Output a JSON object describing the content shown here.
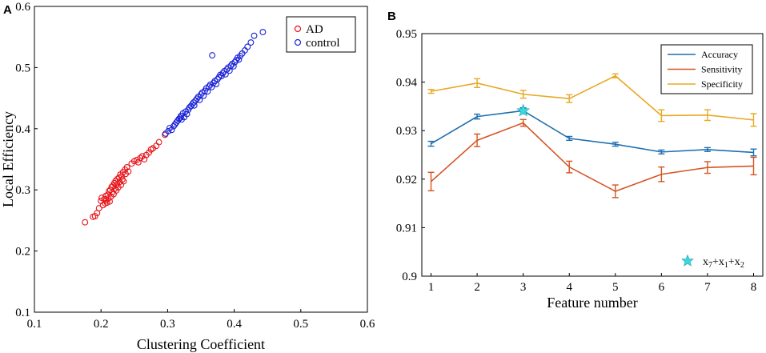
{
  "chart_data": [
    {
      "panel": "A",
      "type": "scatter",
      "xlabel": "Clustering Coefficient",
      "ylabel": "Local Efficiency",
      "xlim": [
        0.1,
        0.6
      ],
      "ylim": [
        0.1,
        0.6
      ],
      "xticks": [
        "0.1",
        "0.2",
        "0.3",
        "0.4",
        "0.5",
        "0.6"
      ],
      "yticks": [
        "0.1",
        "0.2",
        "0.3",
        "0.4",
        "0.5",
        "0.6"
      ],
      "legend": [
        "AD",
        "control"
      ],
      "series": [
        {
          "name": "AD",
          "color": "#e8141a",
          "x": [
            0.176,
            0.188,
            0.191,
            0.194,
            0.197,
            0.2,
            0.201,
            0.203,
            0.205,
            0.206,
            0.207,
            0.208,
            0.209,
            0.21,
            0.211,
            0.212,
            0.213,
            0.214,
            0.215,
            0.216,
            0.217,
            0.218,
            0.219,
            0.22,
            0.221,
            0.222,
            0.223,
            0.224,
            0.225,
            0.226,
            0.227,
            0.228,
            0.229,
            0.23,
            0.231,
            0.232,
            0.233,
            0.234,
            0.236,
            0.237,
            0.239,
            0.241,
            0.246,
            0.25,
            0.254,
            0.256,
            0.259,
            0.262,
            0.265,
            0.268,
            0.272,
            0.275,
            0.278,
            0.283,
            0.287,
            0.296
          ],
          "y": [
            0.247,
            0.256,
            0.257,
            0.262,
            0.27,
            0.282,
            0.287,
            0.275,
            0.285,
            0.278,
            0.29,
            0.283,
            0.279,
            0.292,
            0.286,
            0.298,
            0.281,
            0.3,
            0.289,
            0.305,
            0.296,
            0.307,
            0.293,
            0.311,
            0.302,
            0.315,
            0.299,
            0.309,
            0.318,
            0.304,
            0.32,
            0.313,
            0.325,
            0.308,
            0.322,
            0.317,
            0.329,
            0.314,
            0.333,
            0.326,
            0.337,
            0.33,
            0.343,
            0.347,
            0.349,
            0.345,
            0.352,
            0.355,
            0.35,
            0.357,
            0.361,
            0.366,
            0.368,
            0.372,
            0.378,
            0.39
          ]
        },
        {
          "name": "control",
          "color": "#1a22d6",
          "x": [
            0.297,
            0.301,
            0.303,
            0.306,
            0.309,
            0.311,
            0.313,
            0.315,
            0.317,
            0.319,
            0.32,
            0.321,
            0.323,
            0.325,
            0.327,
            0.329,
            0.331,
            0.333,
            0.335,
            0.337,
            0.339,
            0.34,
            0.342,
            0.344,
            0.346,
            0.348,
            0.35,
            0.352,
            0.354,
            0.356,
            0.358,
            0.36,
            0.362,
            0.364,
            0.366,
            0.367,
            0.369,
            0.371,
            0.373,
            0.375,
            0.377,
            0.379,
            0.381,
            0.383,
            0.385,
            0.387,
            0.389,
            0.391,
            0.393,
            0.395,
            0.397,
            0.399,
            0.401,
            0.403,
            0.405,
            0.407,
            0.409,
            0.412,
            0.416,
            0.42,
            0.425,
            0.43,
            0.443
          ],
          "y": [
            0.392,
            0.396,
            0.401,
            0.398,
            0.404,
            0.407,
            0.41,
            0.413,
            0.416,
            0.418,
            0.421,
            0.415,
            0.425,
            0.419,
            0.428,
            0.424,
            0.431,
            0.435,
            0.437,
            0.44,
            0.443,
            0.438,
            0.446,
            0.449,
            0.452,
            0.447,
            0.456,
            0.459,
            0.454,
            0.462,
            0.466,
            0.461,
            0.469,
            0.472,
            0.468,
            0.52,
            0.475,
            0.478,
            0.473,
            0.481,
            0.484,
            0.488,
            0.486,
            0.491,
            0.494,
            0.489,
            0.497,
            0.5,
            0.495,
            0.503,
            0.506,
            0.502,
            0.509,
            0.512,
            0.516,
            0.513,
            0.519,
            0.523,
            0.528,
            0.534,
            0.541,
            0.552,
            0.558
          ]
        }
      ]
    },
    {
      "panel": "B",
      "type": "line",
      "xlabel": "Feature number",
      "ylabel": "",
      "x": [
        1,
        2,
        3,
        4,
        5,
        6,
        7,
        8
      ],
      "xlim": [
        0.8,
        8.2
      ],
      "ylim": [
        0.9,
        0.95
      ],
      "xticks": [
        "1",
        "2",
        "3",
        "4",
        "5",
        "6",
        "7",
        "8"
      ],
      "yticks": [
        "0.9",
        "0.91",
        "0.92",
        "0.93",
        "0.94",
        "0.95"
      ],
      "series": [
        {
          "name": "Accuracy",
          "color": "#1f6fb0",
          "values": [
            0.9273,
            0.9329,
            0.9341,
            0.9284,
            0.9272,
            0.9256,
            0.9261,
            0.9255
          ],
          "errors": [
            0.0005,
            0.0005,
            0.0006,
            0.0004,
            0.0004,
            0.0004,
            0.0004,
            0.0007
          ]
        },
        {
          "name": "Sensitivity",
          "color": "#d55422",
          "values": [
            0.9195,
            0.928,
            0.9316,
            0.9225,
            0.9175,
            0.921,
            0.9224,
            0.9227
          ],
          "errors": [
            0.0019,
            0.0013,
            0.0007,
            0.0012,
            0.0013,
            0.0015,
            0.0012,
            0.0018
          ]
        },
        {
          "name": "Specificity",
          "color": "#e8a823",
          "values": [
            0.9381,
            0.9398,
            0.9375,
            0.9366,
            0.9413,
            0.9331,
            0.9332,
            0.9322
          ],
          "errors": [
            0.0004,
            0.0009,
            0.0008,
            0.0008,
            0.0004,
            0.0012,
            0.0011,
            0.0013
          ]
        }
      ],
      "highlight": {
        "x": 3,
        "y": 0.9341,
        "color": "#3ed6dc",
        "label": "x7+x1+x2"
      }
    }
  ]
}
